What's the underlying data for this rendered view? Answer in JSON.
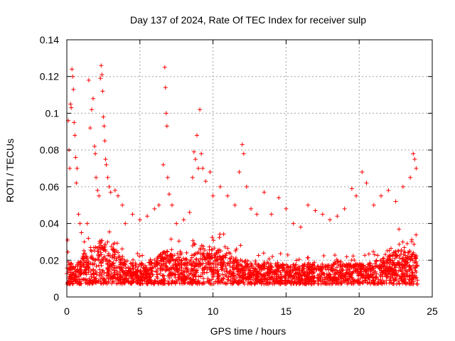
{
  "chart_data": {
    "type": "scatter",
    "title": "Day 137 of 2024, Rate Of TEC Index for receiver sulp",
    "xlabel": "GPS time / hours",
    "ylabel": "ROTI / TECUs",
    "xlim": [
      0,
      25
    ],
    "ylim": [
      0,
      0.14
    ],
    "xticks": [
      0,
      5,
      10,
      15,
      20,
      25
    ],
    "xtick_labels": [
      "0",
      "5",
      "10",
      "15",
      "20",
      "25"
    ],
    "yticks": [
      0,
      0.02,
      0.04,
      0.06,
      0.08,
      0.1,
      0.12,
      0.14
    ],
    "ytick_labels": [
      "0",
      "0.02",
      "0.04",
      "0.06",
      "0.08",
      "0.1",
      "0.12",
      "0.14"
    ],
    "grid": true,
    "marker": "+",
    "color": "#ff0000",
    "series": [
      {
        "name": "ROTI",
        "points": [
          [
            0.05,
            0.031
          ],
          [
            0.1,
            0.096
          ],
          [
            0.15,
            0.08
          ],
          [
            0.2,
            0.07
          ],
          [
            0.25,
            0.105
          ],
          [
            0.3,
            0.103
          ],
          [
            0.35,
            0.124
          ],
          [
            0.4,
            0.12
          ],
          [
            0.45,
            0.113
          ],
          [
            0.5,
            0.095
          ],
          [
            0.55,
            0.088
          ],
          [
            0.6,
            0.076
          ],
          [
            0.65,
            0.062
          ],
          [
            0.7,
            0.07
          ],
          [
            0.8,
            0.045
          ],
          [
            0.9,
            0.04
          ],
          [
            1.0,
            0.035
          ],
          [
            1.2,
            0.03
          ],
          [
            1.4,
            0.04
          ],
          [
            1.5,
            0.118
          ],
          [
            1.6,
            0.092
          ],
          [
            1.7,
            0.102
          ],
          [
            1.8,
            0.108
          ],
          [
            1.9,
            0.082
          ],
          [
            1.95,
            0.078
          ],
          [
            2.0,
            0.065
          ],
          [
            2.1,
            0.058
          ],
          [
            2.2,
            0.055
          ],
          [
            2.3,
            0.119
          ],
          [
            2.35,
            0.126
          ],
          [
            2.4,
            0.121
          ],
          [
            2.45,
            0.112
          ],
          [
            2.5,
            0.098
          ],
          [
            2.55,
            0.093
          ],
          [
            2.6,
            0.085
          ],
          [
            2.65,
            0.075
          ],
          [
            2.7,
            0.072
          ],
          [
            2.8,
            0.065
          ],
          [
            2.9,
            0.06
          ],
          [
            3.0,
            0.057
          ],
          [
            3.3,
            0.058
          ],
          [
            3.5,
            0.055
          ],
          [
            3.8,
            0.05
          ],
          [
            4.0,
            0.04
          ],
          [
            4.5,
            0.045
          ],
          [
            5.0,
            0.042
          ],
          [
            5.5,
            0.044
          ],
          [
            6.0,
            0.048
          ],
          [
            6.3,
            0.05
          ],
          [
            6.6,
            0.072
          ],
          [
            6.7,
            0.125
          ],
          [
            6.75,
            0.114
          ],
          [
            6.8,
            0.1
          ],
          [
            6.85,
            0.093
          ],
          [
            6.9,
            0.065
          ],
          [
            7.0,
            0.056
          ],
          [
            7.2,
            0.05
          ],
          [
            7.5,
            0.04
          ],
          [
            8.0,
            0.042
          ],
          [
            8.4,
            0.046
          ],
          [
            8.6,
            0.065
          ],
          [
            8.7,
            0.079
          ],
          [
            8.8,
            0.075
          ],
          [
            8.9,
            0.088
          ],
          [
            9.0,
            0.07
          ],
          [
            9.1,
            0.102
          ],
          [
            9.2,
            0.078
          ],
          [
            9.3,
            0.07
          ],
          [
            9.5,
            0.063
          ],
          [
            9.8,
            0.068
          ],
          [
            10.0,
            0.055
          ],
          [
            10.5,
            0.06
          ],
          [
            11.0,
            0.055
          ],
          [
            11.5,
            0.05
          ],
          [
            11.8,
            0.068
          ],
          [
            12.0,
            0.083
          ],
          [
            12.1,
            0.078
          ],
          [
            12.3,
            0.06
          ],
          [
            12.6,
            0.048
          ],
          [
            13.0,
            0.045
          ],
          [
            13.5,
            0.057
          ],
          [
            14.0,
            0.045
          ],
          [
            14.5,
            0.054
          ],
          [
            15.0,
            0.048
          ],
          [
            15.5,
            0.04
          ],
          [
            16.0,
            0.038
          ],
          [
            16.5,
            0.05
          ],
          [
            17.0,
            0.047
          ],
          [
            17.5,
            0.045
          ],
          [
            18.0,
            0.042
          ],
          [
            18.5,
            0.044
          ],
          [
            19.0,
            0.048
          ],
          [
            19.5,
            0.059
          ],
          [
            19.8,
            0.055
          ],
          [
            20.2,
            0.068
          ],
          [
            20.5,
            0.062
          ],
          [
            21.0,
            0.05
          ],
          [
            21.5,
            0.055
          ],
          [
            22.0,
            0.058
          ],
          [
            22.5,
            0.052
          ],
          [
            23.0,
            0.06
          ],
          [
            23.5,
            0.065
          ],
          [
            23.7,
            0.078
          ],
          [
            23.8,
            0.075
          ],
          [
            23.9,
            0.07
          ]
        ]
      }
    ]
  }
}
